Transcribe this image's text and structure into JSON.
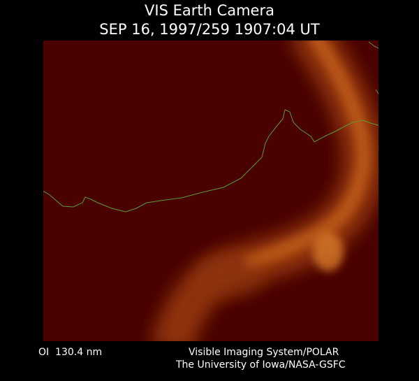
{
  "header": {
    "title": "VIS Earth Camera",
    "timestamp": "SEP 16, 1997/259 1907:04 UT"
  },
  "footer": {
    "wavelength": "OI  130.4 nm",
    "system": "Visible Imaging System/POLAR",
    "institution": "The University of Iowa/NASA-GSFC"
  }
}
